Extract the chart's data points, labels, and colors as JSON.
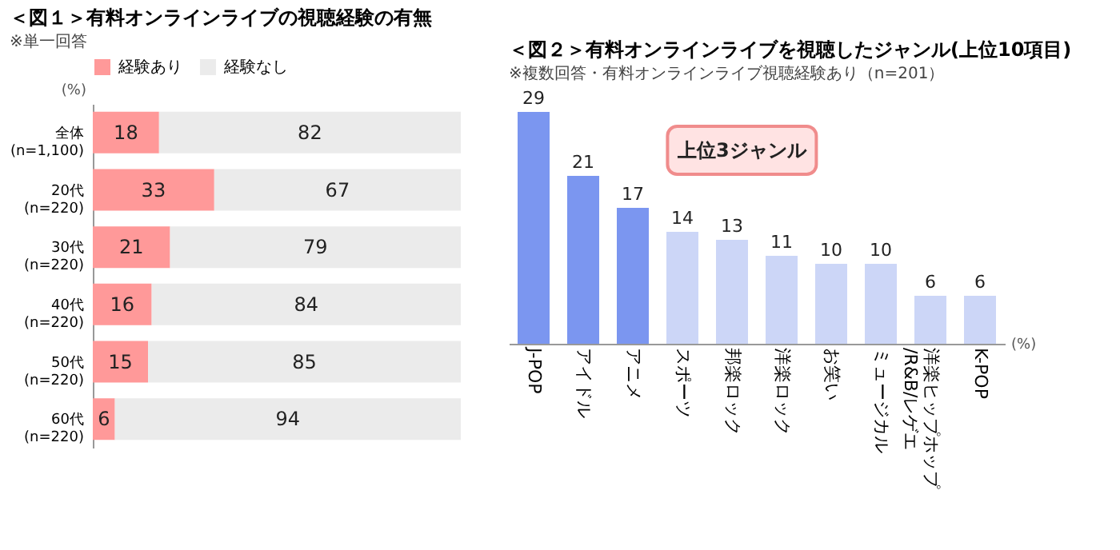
{
  "chart_data": [
    {
      "type": "bar",
      "orientation": "horizontal",
      "stacked": true,
      "title": "＜図１＞有料オンラインライブの視聴経験の有無",
      "subtitle": "※単一回答",
      "categories": [
        "全体 (n=1,100)",
        "20代 (n=220)",
        "30代 (n=220)",
        "40代 (n=220)",
        "50代 (n=220)",
        "60代 (n=220)"
      ],
      "series": [
        {
          "name": "経験あり",
          "color": "#ff9999",
          "values": [
            18,
            33,
            21,
            16,
            15,
            6
          ]
        },
        {
          "name": "経験なし",
          "color": "#ebebeb",
          "values": [
            82,
            67,
            79,
            84,
            85,
            94
          ]
        }
      ],
      "data_labels": true,
      "legend": "top",
      "tick_labels": "y",
      "annotations": [
        "(%)"
      ]
    },
    {
      "type": "bar",
      "title": "＜図２＞有料オンラインライブを視聴したジャンル(上位10項目)",
      "subtitle": "※複数回答・有料オンラインライブ視聴経験あり（n=201）",
      "categories": [
        "J-POP",
        "アイドル",
        "アニメ",
        "スポーツ",
        "邦楽ロック",
        "洋楽ロック",
        "お笑い",
        "ミュージカル",
        "洋楽ヒップホップ/R&B/レゲエ",
        "K-POP"
      ],
      "values": [
        29,
        21,
        17,
        14,
        13,
        11,
        10,
        10,
        6,
        6
      ],
      "colors": [
        "#7b96f0",
        "#7b96f0",
        "#7b96f0",
        "#ccd6f7",
        "#ccd6f7",
        "#ccd6f7",
        "#ccd6f7",
        "#ccd6f7",
        "#ccd6f7",
        "#ccd6f7"
      ],
      "data_labels": true,
      "tick_labels": "x",
      "annotations": [
        "(%)",
        "上位3ジャンル"
      ]
    }
  ]
}
